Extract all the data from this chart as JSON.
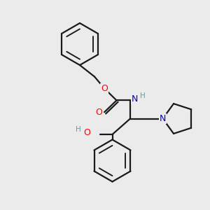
{
  "background_color": "#ebebeb",
  "atom_colors": {
    "N": "#0000cd",
    "O": "#ff0000",
    "H_label": "#5f9ea0"
  },
  "bond_color": "#1a1a1a",
  "bond_width": 1.6
}
